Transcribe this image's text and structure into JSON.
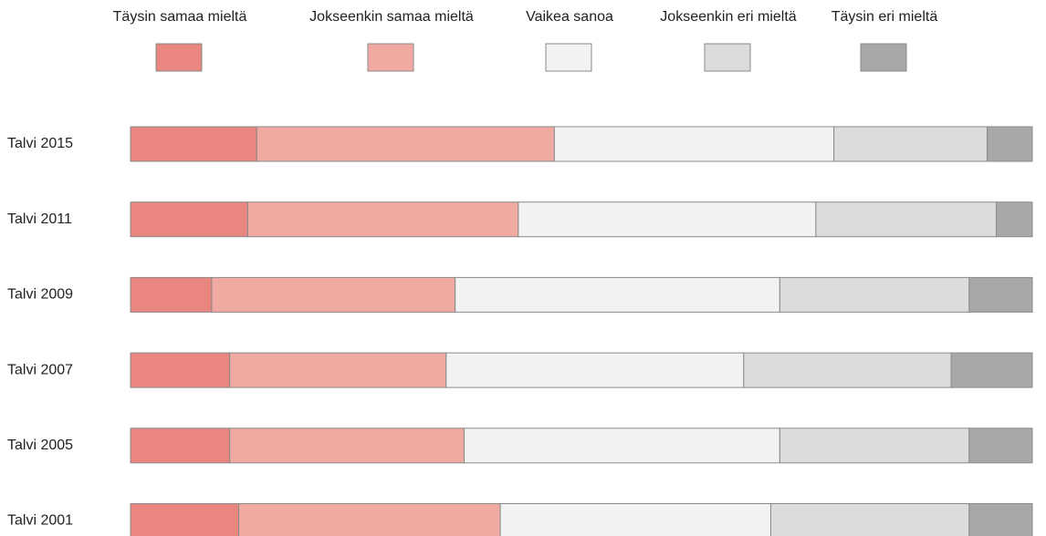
{
  "chart_data": {
    "type": "stacked-bar-horizontal",
    "categories": [
      "Talvi 2015",
      "Talvi 2011",
      "Talvi 2009",
      "Talvi 2007",
      "Talvi 2005",
      "Talvi 2001"
    ],
    "series": [
      {
        "name": "Täysin samaa mieltä",
        "color": "#e8867f",
        "values": [
          14,
          13,
          9,
          11,
          11,
          12
        ]
      },
      {
        "name": "Jokseenkin samaa mieltä",
        "color": "#f0aaa2",
        "values": [
          33,
          30,
          27,
          24,
          26,
          29
        ]
      },
      {
        "name": "Vaikea sanoa",
        "color": "#f2f2f3",
        "values": [
          31,
          33,
          36,
          33,
          35,
          30
        ]
      },
      {
        "name": "Jokseenkin eri mieltä",
        "color": "#dcdcde",
        "values": [
          17,
          20,
          21,
          23,
          21,
          22
        ]
      },
      {
        "name": "Täysin eri mieltä",
        "color": "#a8a8ab",
        "values": [
          5,
          4,
          7,
          9,
          7,
          7
        ]
      }
    ],
    "legend": "top"
  }
}
